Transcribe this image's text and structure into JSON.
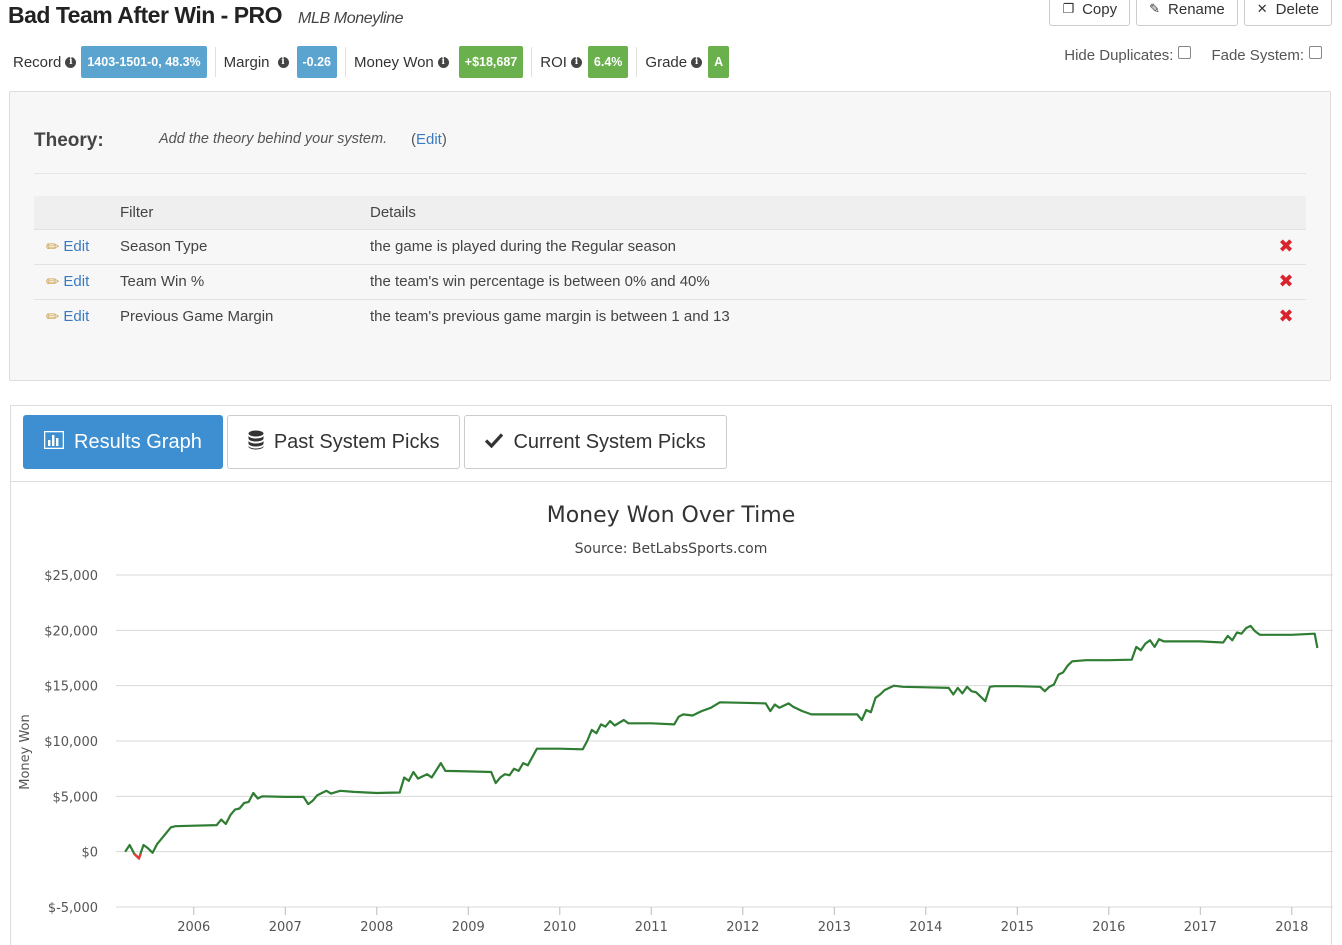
{
  "header": {
    "title": "Bad Team After Win - PRO",
    "subtitle": "MLB Moneyline",
    "copy_label": "Copy",
    "rename_label": "Rename",
    "delete_label": "Delete"
  },
  "stats": {
    "record_label": "Record",
    "record_value": "1403-1501-0, 48.3%",
    "margin_label": "Margin",
    "margin_value": "-0.26",
    "money_label": "Money Won",
    "money_value": "+$18,687",
    "roi_label": "ROI",
    "roi_value": "6.4%",
    "grade_label": "Grade",
    "grade_value": "A"
  },
  "toggles": {
    "hide_duplicates": "Hide Duplicates:",
    "fade_system": "Fade System:"
  },
  "theory": {
    "label": "Theory:",
    "text": "Add the theory behind your system.",
    "edit_open": "(",
    "edit_label": "Edit",
    "edit_close": ")"
  },
  "filters": {
    "header_filter": "Filter",
    "header_details": "Details",
    "edit_label": "Edit",
    "rows": [
      {
        "filter": "Season Type",
        "details": "the game is played during the Regular season"
      },
      {
        "filter": "Team Win %",
        "details": "the team's win percentage is between 0% and 40%"
      },
      {
        "filter": "Previous Game Margin",
        "details": "the team's previous game margin is between 1 and 13"
      }
    ]
  },
  "tabs": {
    "results_graph": "Results Graph",
    "past_picks": "Past System Picks",
    "current_picks": "Current System Picks"
  },
  "colors": {
    "blue_badge": "#5ba4cf",
    "green_badge": "#6ab04c",
    "line": "#2e7d32",
    "negative": "#e53935",
    "active_tab": "#3d8fd1"
  },
  "chart_data": {
    "type": "line",
    "title": "Money Won Over Time",
    "subtitle": "Source: BetLabsSports.com",
    "ylabel": "Money Won",
    "xlabel": "",
    "ylim": [
      -5000,
      25000
    ],
    "yticks": [
      -5000,
      0,
      5000,
      10000,
      15000,
      20000,
      25000
    ],
    "ytick_labels": [
      "$-5,000",
      "$0",
      "$5,000",
      "$10,000",
      "$15,000",
      "$20,000",
      "$25,000"
    ],
    "xlim": [
      2005.15,
      2018.45
    ],
    "xticks": [
      2006,
      2007,
      2008,
      2009,
      2010,
      2011,
      2012,
      2013,
      2014,
      2015,
      2016,
      2017,
      2018
    ],
    "grid": "horizontal",
    "series": [
      {
        "values": [
          [
            2005.25,
            0
          ],
          [
            2005.3,
            600
          ],
          [
            2005.35,
            -200
          ],
          [
            2005.4,
            -600
          ],
          [
            2005.45,
            600
          ],
          [
            2005.5,
            300
          ],
          [
            2005.55,
            -100
          ],
          [
            2005.6,
            700
          ],
          [
            2005.65,
            1200
          ],
          [
            2005.7,
            1700
          ],
          [
            2005.75,
            2200
          ],
          [
            2005.8,
            2300
          ],
          [
            2006.0,
            2350
          ],
          [
            2006.25,
            2400
          ],
          [
            2006.3,
            2900
          ],
          [
            2006.35,
            2500
          ],
          [
            2006.4,
            3300
          ],
          [
            2006.45,
            3800
          ],
          [
            2006.5,
            3900
          ],
          [
            2006.55,
            4400
          ],
          [
            2006.6,
            4500
          ],
          [
            2006.65,
            5300
          ],
          [
            2006.7,
            4800
          ],
          [
            2006.75,
            5000
          ],
          [
            2007.0,
            4950
          ],
          [
            2007.2,
            4950
          ],
          [
            2007.25,
            4300
          ],
          [
            2007.3,
            4600
          ],
          [
            2007.35,
            5100
          ],
          [
            2007.4,
            5300
          ],
          [
            2007.45,
            5500
          ],
          [
            2007.5,
            5250
          ],
          [
            2007.6,
            5500
          ],
          [
            2007.75,
            5400
          ],
          [
            2008.0,
            5300
          ],
          [
            2008.25,
            5350
          ],
          [
            2008.3,
            6700
          ],
          [
            2008.35,
            6400
          ],
          [
            2008.4,
            7200
          ],
          [
            2008.45,
            6600
          ],
          [
            2008.5,
            6800
          ],
          [
            2008.55,
            7000
          ],
          [
            2008.6,
            6700
          ],
          [
            2008.7,
            8000
          ],
          [
            2008.75,
            7300
          ],
          [
            2009.0,
            7250
          ],
          [
            2009.25,
            7200
          ],
          [
            2009.3,
            6200
          ],
          [
            2009.35,
            6700
          ],
          [
            2009.4,
            7000
          ],
          [
            2009.45,
            6900
          ],
          [
            2009.5,
            7500
          ],
          [
            2009.55,
            7300
          ],
          [
            2009.6,
            8000
          ],
          [
            2009.65,
            7800
          ],
          [
            2009.75,
            9300
          ],
          [
            2010.0,
            9300
          ],
          [
            2010.25,
            9250
          ],
          [
            2010.3,
            10000
          ],
          [
            2010.35,
            11000
          ],
          [
            2010.4,
            10700
          ],
          [
            2010.45,
            11500
          ],
          [
            2010.5,
            11300
          ],
          [
            2010.55,
            11800
          ],
          [
            2010.6,
            11400
          ],
          [
            2010.7,
            11900
          ],
          [
            2010.75,
            11600
          ],
          [
            2011.0,
            11600
          ],
          [
            2011.25,
            11500
          ],
          [
            2011.3,
            12200
          ],
          [
            2011.35,
            12400
          ],
          [
            2011.45,
            12300
          ],
          [
            2011.55,
            12700
          ],
          [
            2011.65,
            13000
          ],
          [
            2011.75,
            13500
          ],
          [
            2012.0,
            13450
          ],
          [
            2012.25,
            13400
          ],
          [
            2012.3,
            12700
          ],
          [
            2012.35,
            13300
          ],
          [
            2012.4,
            13000
          ],
          [
            2012.5,
            13400
          ],
          [
            2012.55,
            13100
          ],
          [
            2012.65,
            12700
          ],
          [
            2012.75,
            12400
          ],
          [
            2013.0,
            12400
          ],
          [
            2013.25,
            12400
          ],
          [
            2013.3,
            11900
          ],
          [
            2013.35,
            12800
          ],
          [
            2013.4,
            12600
          ],
          [
            2013.45,
            13900
          ],
          [
            2013.5,
            14200
          ],
          [
            2013.55,
            14600
          ],
          [
            2013.65,
            15000
          ],
          [
            2013.75,
            14900
          ],
          [
            2014.0,
            14850
          ],
          [
            2014.25,
            14800
          ],
          [
            2014.3,
            14200
          ],
          [
            2014.35,
            14800
          ],
          [
            2014.4,
            14300
          ],
          [
            2014.45,
            14900
          ],
          [
            2014.5,
            14500
          ],
          [
            2014.55,
            14400
          ],
          [
            2014.6,
            14000
          ],
          [
            2014.65,
            13600
          ],
          [
            2014.7,
            14900
          ],
          [
            2014.75,
            14950
          ],
          [
            2015.0,
            14950
          ],
          [
            2015.25,
            14900
          ],
          [
            2015.3,
            14500
          ],
          [
            2015.35,
            14900
          ],
          [
            2015.4,
            15100
          ],
          [
            2015.45,
            16000
          ],
          [
            2015.5,
            16200
          ],
          [
            2015.55,
            16800
          ],
          [
            2015.6,
            17200
          ],
          [
            2015.75,
            17300
          ],
          [
            2016.0,
            17300
          ],
          [
            2016.25,
            17350
          ],
          [
            2016.3,
            18500
          ],
          [
            2016.35,
            18200
          ],
          [
            2016.4,
            18800
          ],
          [
            2016.45,
            19100
          ],
          [
            2016.5,
            18500
          ],
          [
            2016.55,
            19200
          ],
          [
            2016.6,
            19000
          ],
          [
            2016.75,
            19000
          ],
          [
            2017.0,
            19000
          ],
          [
            2017.25,
            18900
          ],
          [
            2017.3,
            19500
          ],
          [
            2017.35,
            19100
          ],
          [
            2017.4,
            19800
          ],
          [
            2017.45,
            19700
          ],
          [
            2017.5,
            20200
          ],
          [
            2017.55,
            20400
          ],
          [
            2017.6,
            19900
          ],
          [
            2017.65,
            19600
          ],
          [
            2017.75,
            19600
          ],
          [
            2018.0,
            19600
          ],
          [
            2018.25,
            19700
          ],
          [
            2018.28,
            18400
          ]
        ],
        "negative_segment": [
          [
            2005.35,
            -200
          ],
          [
            2005.4,
            -600
          ],
          [
            2005.42,
            -200
          ]
        ]
      }
    ]
  }
}
